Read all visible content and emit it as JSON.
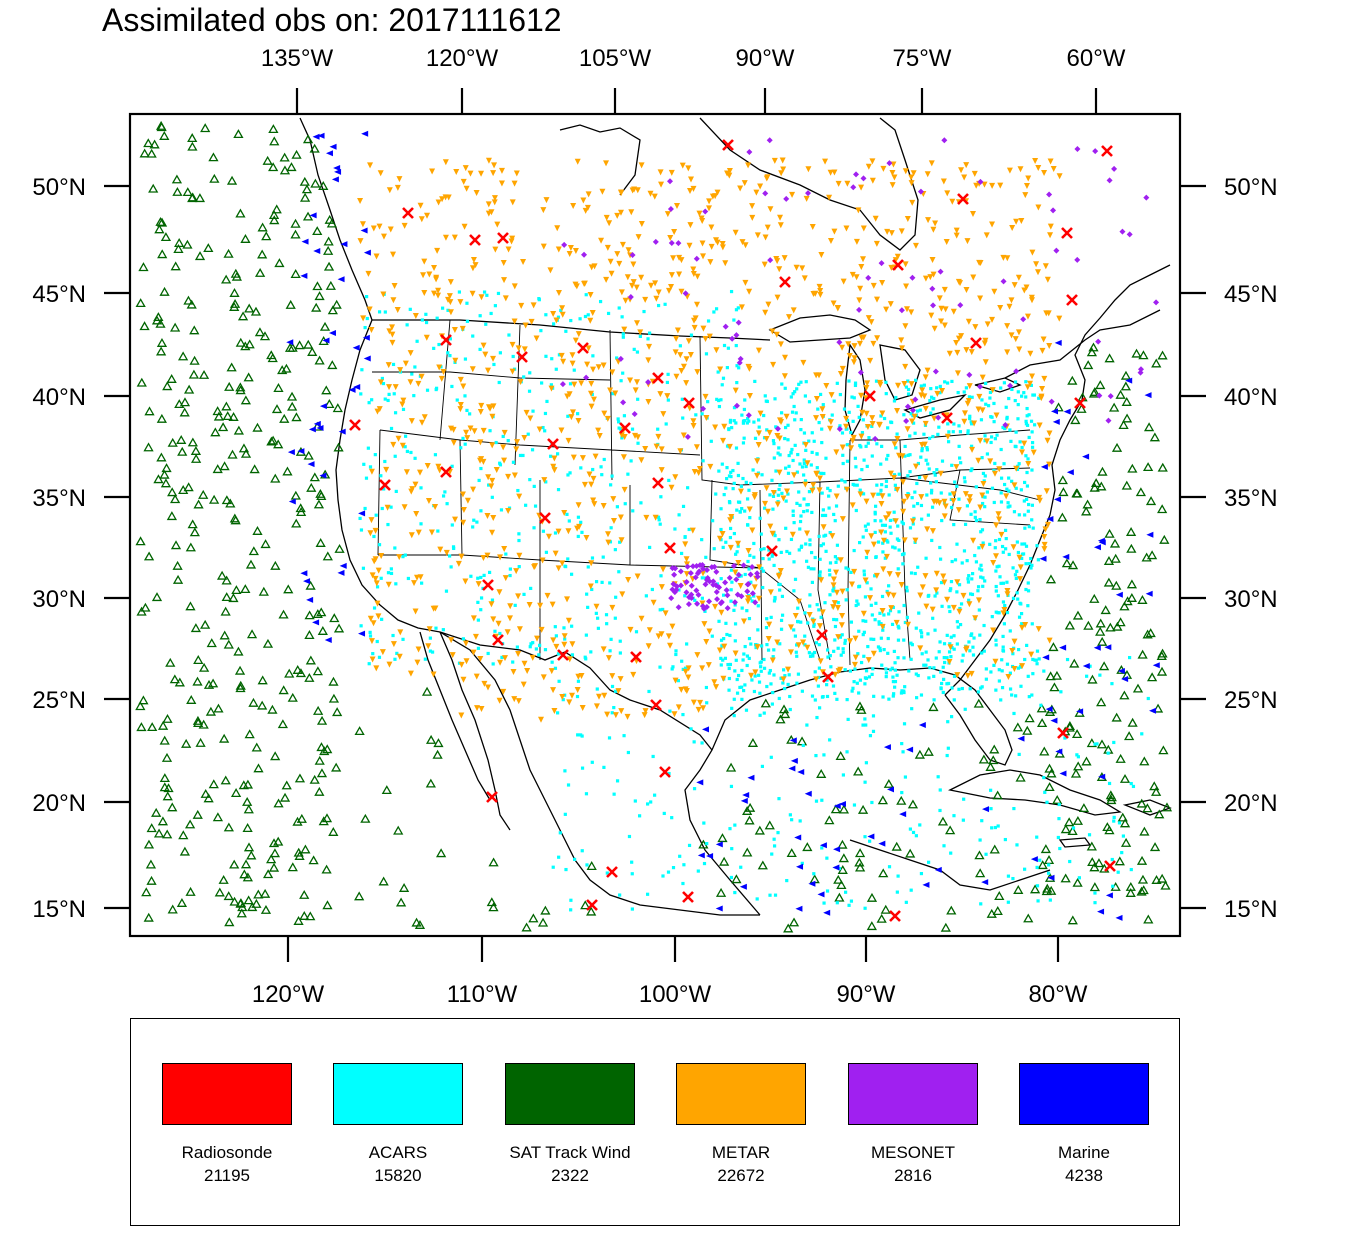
{
  "title": {
    "prefix": "Assimilated obs on:",
    "date": "2017111612"
  },
  "axes": {
    "top_lon_labels": [
      "135°W",
      "120°W",
      "105°W",
      "90°W",
      "75°W",
      "60°W"
    ],
    "bottom_lon_labels": [
      "120°W",
      "110°W",
      "100°W",
      "90°W",
      "80°W"
    ],
    "lat_labels": [
      "50°N",
      "45°N",
      "40°N",
      "35°N",
      "30°N",
      "25°N",
      "20°N",
      "15°N"
    ]
  },
  "legend": [
    {
      "label": "Radiosonde",
      "count": "21195",
      "color": "#ff0000",
      "icon": "x-mark-icon"
    },
    {
      "label": "ACARS",
      "count": "15820",
      "color": "#00ffff",
      "icon": "square-dot-icon"
    },
    {
      "label": "SAT Track Wind",
      "count": "2322",
      "color": "#006400",
      "icon": "triangle-up-icon"
    },
    {
      "label": "METAR",
      "count": "22672",
      "color": "#ffa500",
      "icon": "triangle-down-icon"
    },
    {
      "label": "MESONET",
      "count": "2816",
      "color": "#a020f0",
      "icon": "diamond-icon"
    },
    {
      "label": "Marine",
      "count": "4238",
      "color": "#0000ff",
      "icon": "triangle-left-icon"
    }
  ]
}
